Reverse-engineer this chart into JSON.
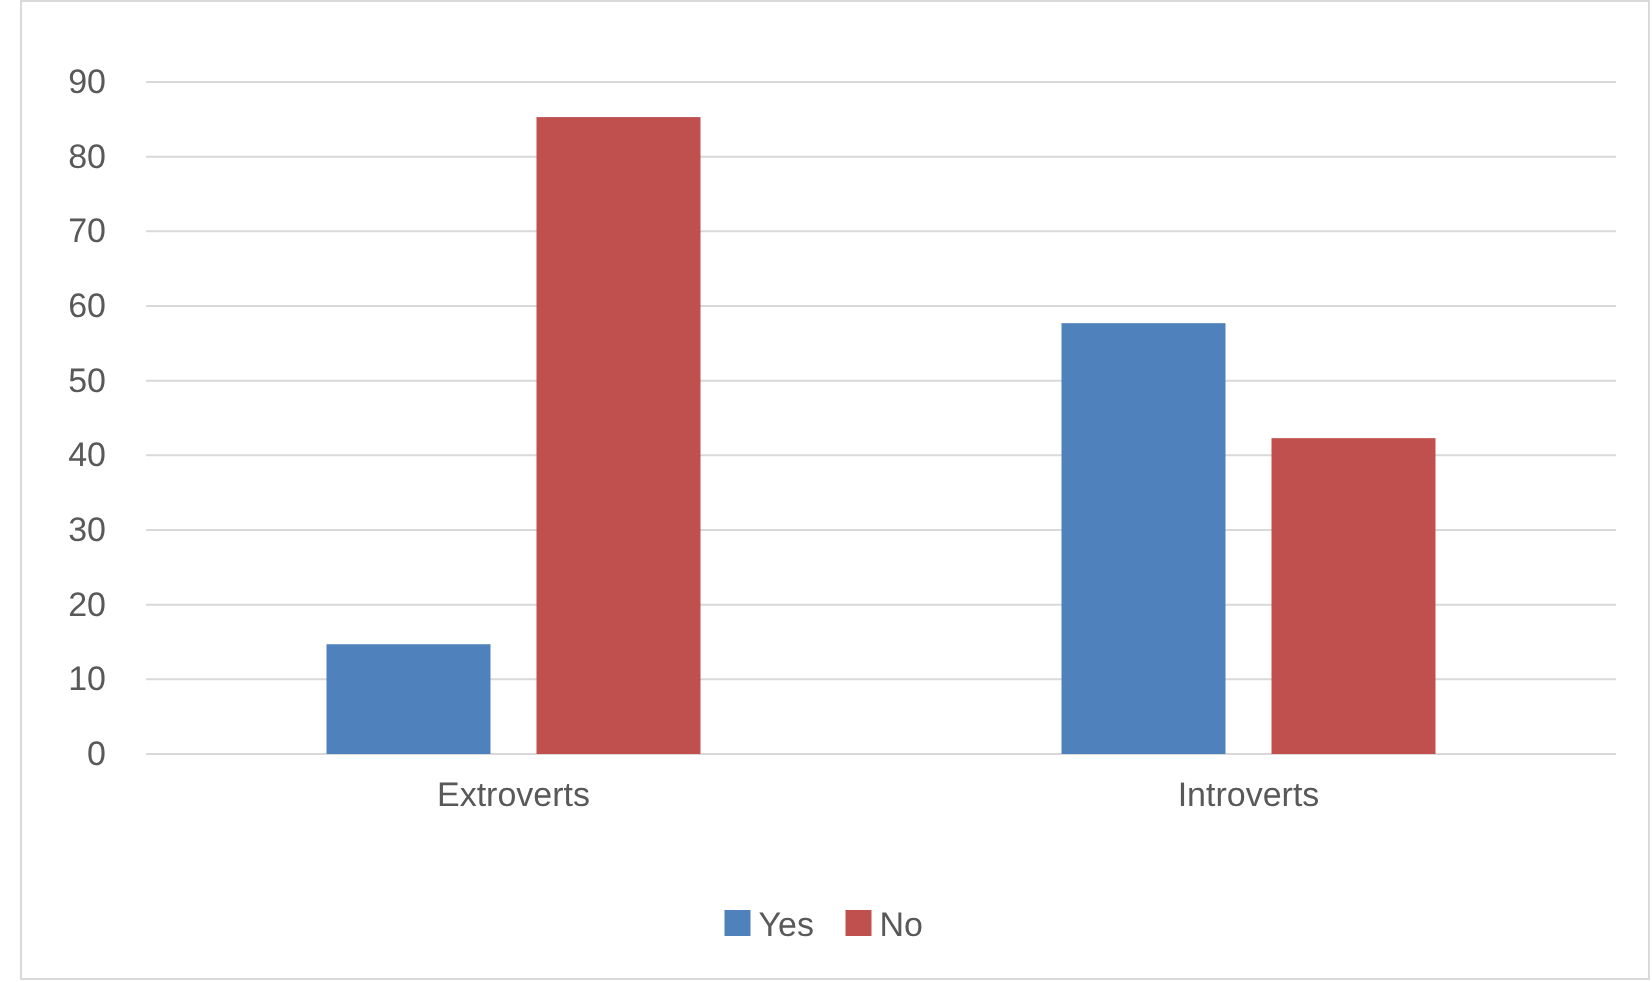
{
  "chart_data": {
    "type": "bar",
    "categories": [
      "Extroverts",
      "Introverts"
    ],
    "series": [
      {
        "name": "Yes",
        "color": "#4f81bd",
        "values": [
          14.7,
          57.7
        ]
      },
      {
        "name": "No",
        "color": "#c0504d",
        "values": [
          85.3,
          42.3
        ]
      }
    ],
    "ylim": [
      0,
      90
    ],
    "yticks": [
      0,
      10,
      20,
      30,
      40,
      50,
      60,
      70,
      80,
      90
    ],
    "grid": "y",
    "legend": "bottom"
  }
}
